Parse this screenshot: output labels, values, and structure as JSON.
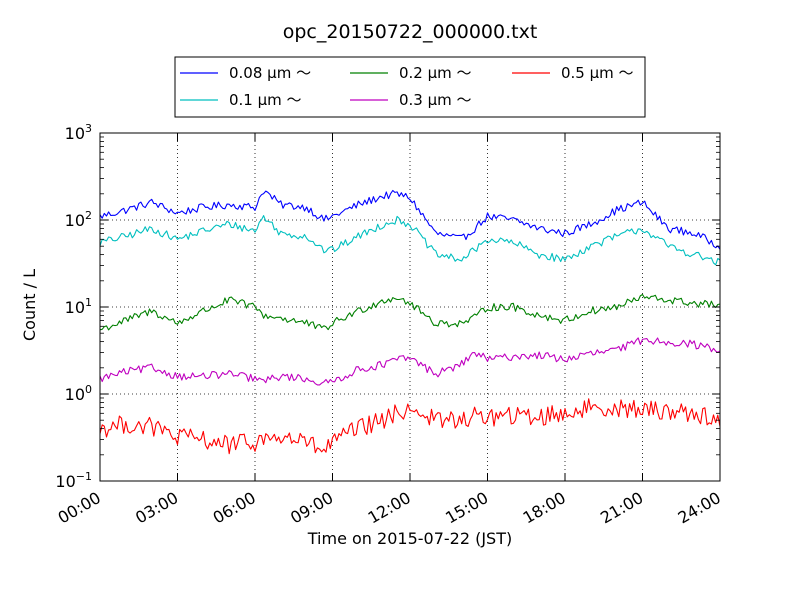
{
  "chart_data": {
    "type": "line",
    "title": "opc_20150722_000000.txt",
    "xlabel": "Time on 2015-07-22 (JST)",
    "ylabel": "Count / L",
    "yscale": "log",
    "xlim": [
      "00:00",
      "24:00"
    ],
    "ylim": [
      0.1,
      1000
    ],
    "grid": true,
    "legend_position": "top-center",
    "x_ticks": [
      "00:00",
      "03:00",
      "06:00",
      "09:00",
      "12:00",
      "15:00",
      "18:00",
      "21:00",
      "24:00"
    ],
    "y_ticks": [
      {
        "value": 0.1,
        "base": "10",
        "exp": "−1"
      },
      {
        "value": 1,
        "base": "10",
        "exp": "0"
      },
      {
        "value": 10,
        "base": "10",
        "exp": "1"
      },
      {
        "value": 100,
        "base": "10",
        "exp": "2"
      },
      {
        "value": 1000,
        "base": "10",
        "exp": "3"
      }
    ],
    "x": [
      "00:00",
      "01:00",
      "02:00",
      "03:00",
      "04:00",
      "05:00",
      "06:00",
      "06:20",
      "07:00",
      "08:00",
      "08:40",
      "09:00",
      "10:00",
      "11:00",
      "11:30",
      "12:00",
      "13:00",
      "14:00",
      "14:30",
      "15:00",
      "16:00",
      "17:00",
      "18:00",
      "19:00",
      "20:00",
      "21:00",
      "22:00",
      "23:00",
      "24:00"
    ],
    "series": [
      {
        "name": "0.08 μm ～",
        "color": "#0000ff",
        "values": [
          110,
          130,
          160,
          120,
          140,
          150,
          140,
          220,
          150,
          140,
          100,
          110,
          150,
          190,
          200,
          180,
          70,
          60,
          80,
          110,
          100,
          80,
          70,
          90,
          130,
          160,
          80,
          70,
          50
        ]
      },
      {
        "name": "0.1 μm ～",
        "color": "#00bfbf",
        "values": [
          55,
          65,
          80,
          60,
          75,
          90,
          75,
          110,
          70,
          65,
          45,
          45,
          65,
          90,
          100,
          90,
          40,
          35,
          45,
          60,
          55,
          40,
          35,
          50,
          65,
          80,
          50,
          40,
          32
        ]
      },
      {
        "name": "0.2 μm ～",
        "color": "#008000",
        "values": [
          5.5,
          7,
          9,
          6.5,
          9,
          12,
          10,
          8,
          7.5,
          6.5,
          5.5,
          6.5,
          9,
          12,
          13,
          11,
          6.5,
          6.5,
          7.5,
          10,
          10,
          8,
          7,
          9,
          10,
          13,
          12,
          11,
          10.5
        ]
      },
      {
        "name": "0.3 μm ～",
        "color": "#bf00bf",
        "values": [
          1.5,
          1.8,
          2,
          1.6,
          1.6,
          1.7,
          1.5,
          1.4,
          1.6,
          1.5,
          1.3,
          1.4,
          1.9,
          2.2,
          2.5,
          2.6,
          1.7,
          2.2,
          3.0,
          2.5,
          2.7,
          2.8,
          2.5,
          2.9,
          3.2,
          4.2,
          4.0,
          3.7,
          3.2
        ]
      },
      {
        "name": "0.5 μm ～",
        "color": "#ff0000",
        "values": [
          0.4,
          0.45,
          0.42,
          0.32,
          0.3,
          0.26,
          0.28,
          0.3,
          0.32,
          0.28,
          0.22,
          0.28,
          0.4,
          0.5,
          0.6,
          0.7,
          0.5,
          0.5,
          0.55,
          0.55,
          0.55,
          0.55,
          0.6,
          0.7,
          0.7,
          0.65,
          0.65,
          0.6,
          0.5
        ]
      }
    ]
  }
}
